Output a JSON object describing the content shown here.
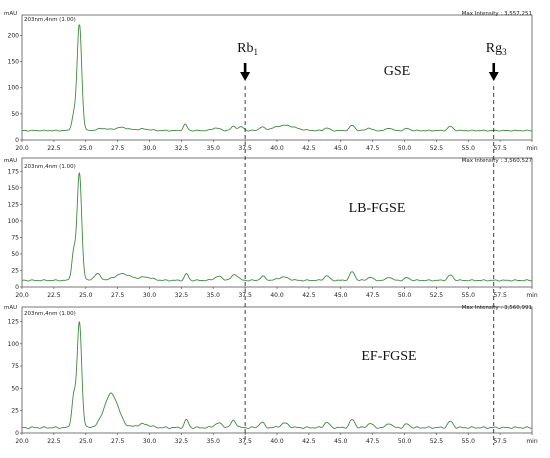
{
  "chart_data": [
    {
      "type": "line",
      "y_unit": "mAU",
      "trace_label": "203nm,4nm (1.00)",
      "max_intensity": "Max Intensity : 3,557,251",
      "sample_label": "GSE",
      "x_unit": "min",
      "xlim": [
        20.0,
        60.0
      ],
      "ylim": [
        0,
        220
      ],
      "yticks": [
        "0",
        "50",
        "100",
        "150",
        "200"
      ],
      "ytick_values": [
        0,
        50,
        100,
        150,
        200
      ],
      "xticks": [
        "20.0",
        "22.5",
        "25.0",
        "27.5",
        "30.0",
        "32.5",
        "35.0",
        "37.5",
        "40.0",
        "42.5",
        "45.0",
        "47.5",
        "50.0",
        "52.5",
        "55.0",
        "57.5",
        "min"
      ],
      "baseline": 18,
      "peaks": [
        {
          "rt": 24.05,
          "h": 28,
          "w": 0.15
        },
        {
          "rt": 24.5,
          "h": 205,
          "w": 0.18
        },
        {
          "rt": 26.3,
          "h": 4,
          "w": 0.4
        },
        {
          "rt": 27.8,
          "h": 6,
          "w": 0.5
        },
        {
          "rt": 29.5,
          "h": 3,
          "w": 0.5
        },
        {
          "rt": 32.8,
          "h": 12,
          "w": 0.15
        },
        {
          "rt": 35.2,
          "h": 5,
          "w": 0.3
        },
        {
          "rt": 36.6,
          "h": 8,
          "w": 0.2
        },
        {
          "rt": 37.2,
          "h": 7,
          "w": 0.2
        },
        {
          "rt": 38.8,
          "h": 6,
          "w": 0.2
        },
        {
          "rt": 40.6,
          "h": 10,
          "w": 0.8
        },
        {
          "rt": 43.9,
          "h": 5,
          "w": 0.2
        },
        {
          "rt": 45.9,
          "h": 10,
          "w": 0.2
        },
        {
          "rt": 47.2,
          "h": 5,
          "w": 0.2
        },
        {
          "rt": 48.8,
          "h": 5,
          "w": 0.2
        },
        {
          "rt": 50.2,
          "h": 4,
          "w": 0.2
        },
        {
          "rt": 53.6,
          "h": 8,
          "w": 0.2
        }
      ]
    },
    {
      "type": "line",
      "y_unit": "mAU",
      "trace_label": "203nm,4nm (1.00)",
      "max_intensity": "Max Intensity : 3,560,527",
      "sample_label": "LB-FGSE",
      "x_unit": "min",
      "xlim": [
        20.0,
        60.0
      ],
      "ylim": [
        0,
        180
      ],
      "yticks": [
        "0",
        "25",
        "50",
        "75",
        "100",
        "125",
        "150",
        "175"
      ],
      "ytick_values": [
        0,
        25,
        50,
        75,
        100,
        125,
        150,
        175
      ],
      "xticks": [
        "20.0",
        "22.5",
        "25.0",
        "27.5",
        "30.0",
        "32.5",
        "35.0",
        "37.5",
        "40.0",
        "42.5",
        "45.0",
        "47.5",
        "50.0",
        "52.5",
        "55.0",
        "57.5",
        "min"
      ],
      "baseline": 10,
      "peaks": [
        {
          "rt": 24.05,
          "h": 42,
          "w": 0.15
        },
        {
          "rt": 24.5,
          "h": 162,
          "w": 0.18
        },
        {
          "rt": 25.9,
          "h": 10,
          "w": 0.25
        },
        {
          "rt": 27.9,
          "h": 10,
          "w": 0.6
        },
        {
          "rt": 29.7,
          "h": 5,
          "w": 0.5
        },
        {
          "rt": 32.9,
          "h": 10,
          "w": 0.15
        },
        {
          "rt": 35.4,
          "h": 6,
          "w": 0.3
        },
        {
          "rt": 36.7,
          "h": 9,
          "w": 0.25
        },
        {
          "rt": 38.9,
          "h": 6,
          "w": 0.2
        },
        {
          "rt": 40.5,
          "h": 5,
          "w": 0.4
        },
        {
          "rt": 43.9,
          "h": 7,
          "w": 0.2
        },
        {
          "rt": 45.9,
          "h": 13,
          "w": 0.2
        },
        {
          "rt": 47.3,
          "h": 5,
          "w": 0.2
        },
        {
          "rt": 48.8,
          "h": 5,
          "w": 0.2
        },
        {
          "rt": 50.2,
          "h": 4,
          "w": 0.2
        },
        {
          "rt": 53.6,
          "h": 8,
          "w": 0.2
        }
      ]
    },
    {
      "type": "line",
      "y_unit": "mAU",
      "trace_label": "203nm,4nm (1.00)",
      "max_intensity": "Max Intensity : 3,560,991",
      "sample_label": "EF-FGSE",
      "x_unit": "min",
      "xlim": [
        20.0,
        60.0
      ],
      "ylim": [
        0,
        130
      ],
      "yticks": [
        "0",
        "25",
        "50",
        "75",
        "100",
        "125"
      ],
      "ytick_values": [
        0,
        25,
        50,
        75,
        100,
        125
      ],
      "xticks": [
        "20.0",
        "22.5",
        "25.0",
        "27.5",
        "30.0",
        "32.5",
        "35.0",
        "37.5",
        "40.0",
        "42.5",
        "45.0",
        "47.5",
        "50.0",
        "52.5",
        "55.0",
        "57.5",
        "min"
      ],
      "baseline": 6,
      "peaks": [
        {
          "rt": 24.05,
          "h": 34,
          "w": 0.15
        },
        {
          "rt": 24.5,
          "h": 118,
          "w": 0.18
        },
        {
          "rt": 27.0,
          "h": 38,
          "w": 0.55
        },
        {
          "rt": 29.5,
          "h": 4,
          "w": 0.5
        },
        {
          "rt": 32.9,
          "h": 9,
          "w": 0.15
        },
        {
          "rt": 35.4,
          "h": 5,
          "w": 0.3
        },
        {
          "rt": 36.6,
          "h": 8,
          "w": 0.2
        },
        {
          "rt": 38.8,
          "h": 6,
          "w": 0.2
        },
        {
          "rt": 40.6,
          "h": 5,
          "w": 0.3
        },
        {
          "rt": 43.9,
          "h": 6,
          "w": 0.2
        },
        {
          "rt": 45.9,
          "h": 9,
          "w": 0.2
        },
        {
          "rt": 47.3,
          "h": 5,
          "w": 0.2
        },
        {
          "rt": 48.8,
          "h": 5,
          "w": 0.2
        },
        {
          "rt": 50.2,
          "h": 4,
          "w": 0.2
        },
        {
          "rt": 53.6,
          "h": 7,
          "w": 0.2
        }
      ]
    }
  ],
  "markers": [
    {
      "label": "Rb",
      "subscript": "1",
      "rt": 37.5
    },
    {
      "label": "Rg",
      "subscript": "3",
      "rt": 57.0
    }
  ],
  "colors": {
    "trace": "#3d8a3d",
    "axis": "#555555",
    "marker_line": "#111111"
  }
}
